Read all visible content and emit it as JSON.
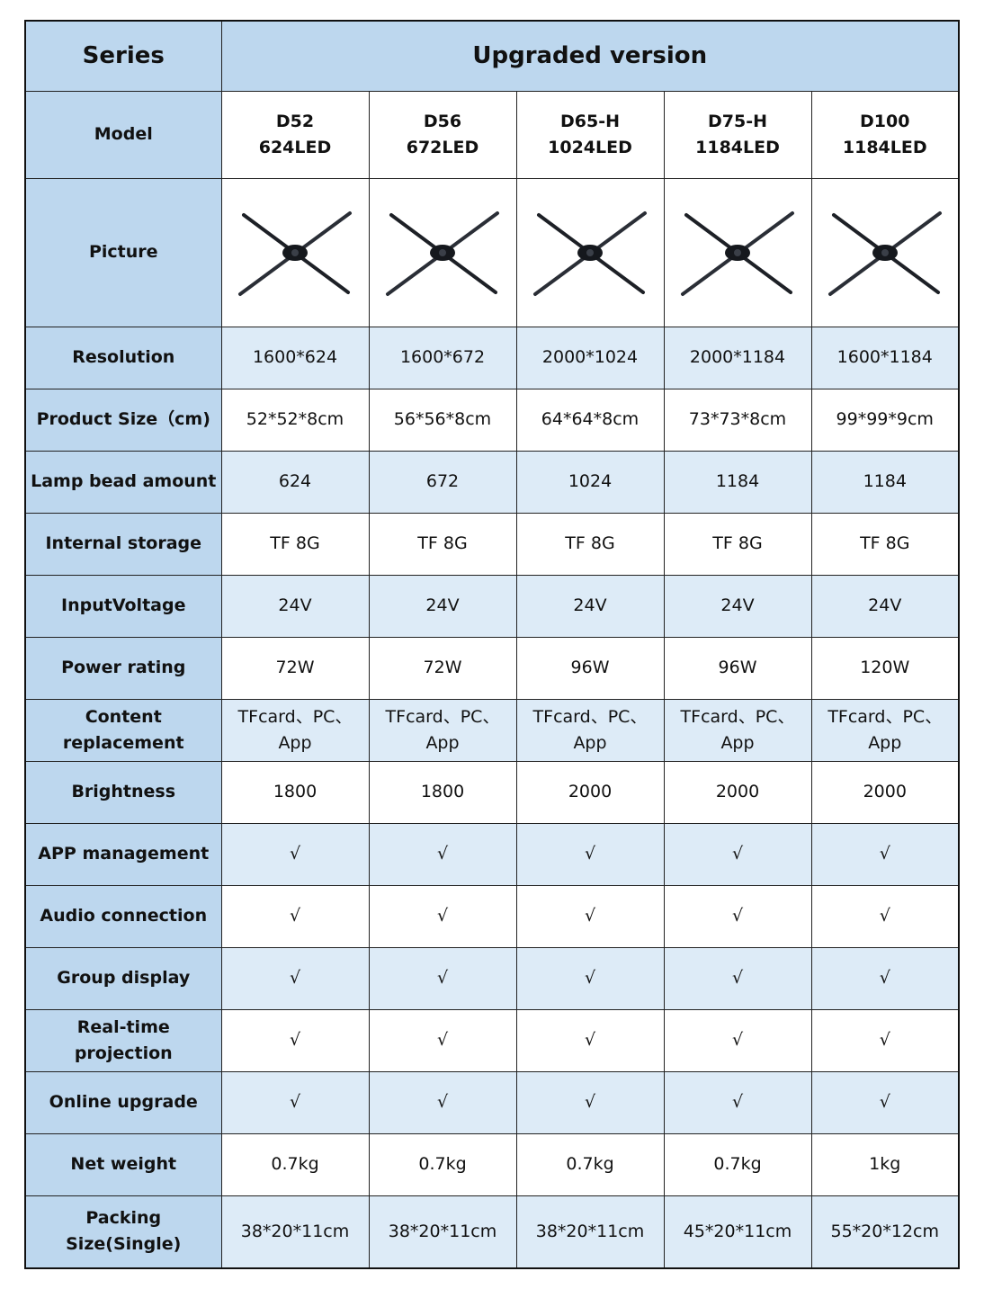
{
  "header": {
    "series_label": "Series",
    "version_label": "Upgraded version"
  },
  "model_label": "Model",
  "models": [
    {
      "name": "D52",
      "leds": "624LED"
    },
    {
      "name": "D56",
      "leds": "672LED"
    },
    {
      "name": "D65-H",
      "leds": "1024LED"
    },
    {
      "name": "D75-H",
      "leds": "1184LED"
    },
    {
      "name": "D100",
      "leds": "1184LED"
    }
  ],
  "picture_label": "Picture",
  "picture_icon": "hologram-fan-icon",
  "rows": [
    {
      "label": "Resolution",
      "values": [
        "1600*624",
        "1600*672",
        "2000*1024",
        "2000*1184",
        "1600*1184"
      ]
    },
    {
      "label": "Product Size（cm)",
      "values": [
        "52*52*8cm",
        "56*56*8cm",
        "64*64*8cm",
        "73*73*8cm",
        "99*99*9cm"
      ]
    },
    {
      "label": "Lamp bead amount",
      "values": [
        "624",
        "672",
        "1024",
        "1184",
        "1184"
      ]
    },
    {
      "label": "Internal storage",
      "values": [
        "TF 8G",
        "TF 8G",
        "TF 8G",
        "TF 8G",
        "TF 8G"
      ]
    },
    {
      "label": "InputVoltage",
      "values": [
        "24V",
        "24V",
        "24V",
        "24V",
        "24V"
      ]
    },
    {
      "label": "Power rating",
      "values": [
        "72W",
        "72W",
        "96W",
        "96W",
        "120W"
      ]
    },
    {
      "label": "Content replacement",
      "values": [
        "TFcard、PC、App",
        "TFcard、PC、App",
        "TFcard、PC、App",
        "TFcard、PC、App",
        "TFcard、PC、App"
      ]
    },
    {
      "label": "Brightness",
      "values": [
        "1800",
        "1800",
        "2000",
        "2000",
        "2000"
      ]
    },
    {
      "label": "APP management",
      "values": [
        "√",
        "√",
        "√",
        "√",
        "√"
      ]
    },
    {
      "label": "Audio connection",
      "values": [
        "√",
        "√",
        "√",
        "√",
        "√"
      ]
    },
    {
      "label": "Group display",
      "values": [
        "√",
        "√",
        "√",
        "√",
        "√"
      ]
    },
    {
      "label": "Real-time projection",
      "values": [
        "√",
        "√",
        "√",
        "√",
        "√"
      ]
    },
    {
      "label": "Online upgrade",
      "values": [
        "√",
        "√",
        "√",
        "√",
        "√"
      ]
    },
    {
      "label": "Net weight",
      "values": [
        "0.7kg",
        "0.7kg",
        "0.7kg",
        "0.7kg",
        "1kg"
      ]
    },
    {
      "label": "Packing Size(Single)",
      "values": [
        "38*20*11cm",
        "38*20*11cm",
        "38*20*11cm",
        "45*20*11cm",
        "55*20*12cm"
      ]
    }
  ],
  "colors": {
    "header_blue": "#bdd7ee",
    "row_light_blue": "#ddebf7",
    "border": "#111111"
  }
}
